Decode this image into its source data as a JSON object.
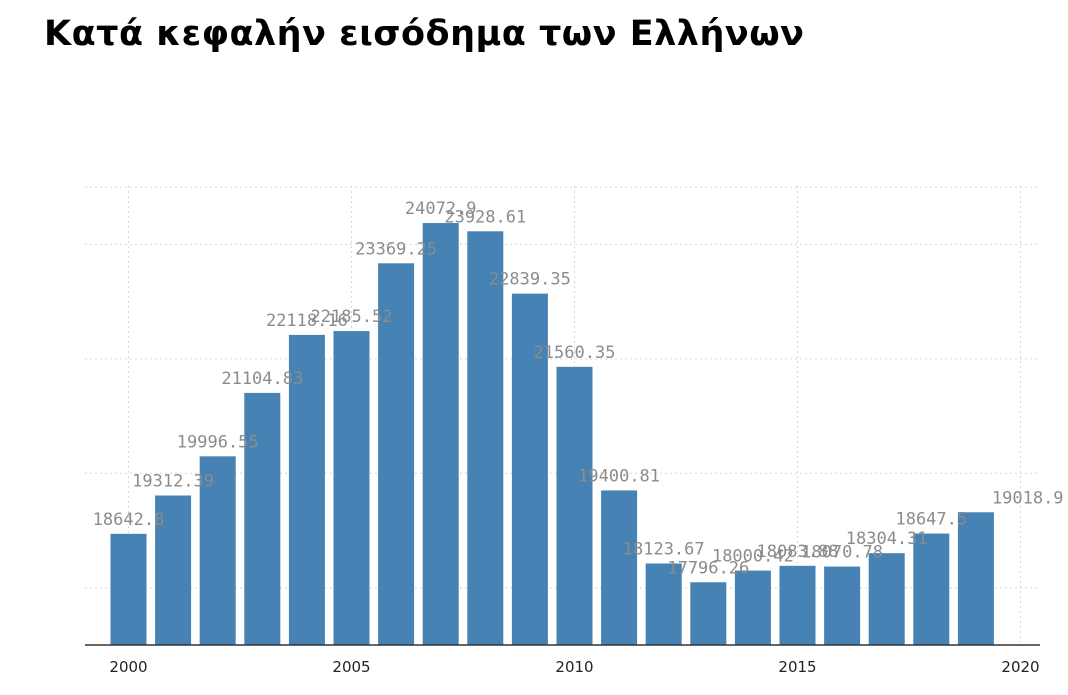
{
  "chart_data": {
    "type": "bar",
    "title": "Κατά κεφαλήν εισόδημα των Ελλήνων",
    "xlabel": "",
    "ylabel": "",
    "x": [
      2000,
      2001,
      2002,
      2003,
      2004,
      2005,
      2006,
      2007,
      2008,
      2009,
      2010,
      2011,
      2012,
      2013,
      2014,
      2015,
      2016,
      2017,
      2018,
      2019
    ],
    "values": [
      18642.8,
      19312.39,
      19996.55,
      21104.83,
      22118.16,
      22185.52,
      23369.25,
      24072.9,
      23928.61,
      22839.35,
      21560.35,
      19400.81,
      18123.67,
      17796.26,
      18000.42,
      18083.88,
      18070.78,
      18304.31,
      18647.5,
      19018.9
    ],
    "data_labels": [
      "18642.8",
      "19312.39",
      "19996.55",
      "21104.83",
      "22118.16",
      "22185.52",
      "23369.25",
      "24072.9",
      "23928.61",
      "22839.35",
      "21560.35",
      "19400.81",
      "18123.67",
      "17796.26",
      "18000.42",
      "18083.88",
      "18070.78",
      "18304.31",
      "18647.5",
      "19018.9"
    ],
    "x_ticks": [
      "2000",
      "2005",
      "2010",
      "2015",
      "2020"
    ],
    "xlim": [
      1999.5,
      2020.5
    ],
    "ylim": [
      16700,
      24720
    ],
    "y_grid_values": [
      16700,
      17700,
      19700,
      21700,
      23700,
      24700
    ],
    "y_tick_labels": "none",
    "grid": true,
    "bar_color": "#4682b4",
    "label_color": "#8c8c8c"
  }
}
